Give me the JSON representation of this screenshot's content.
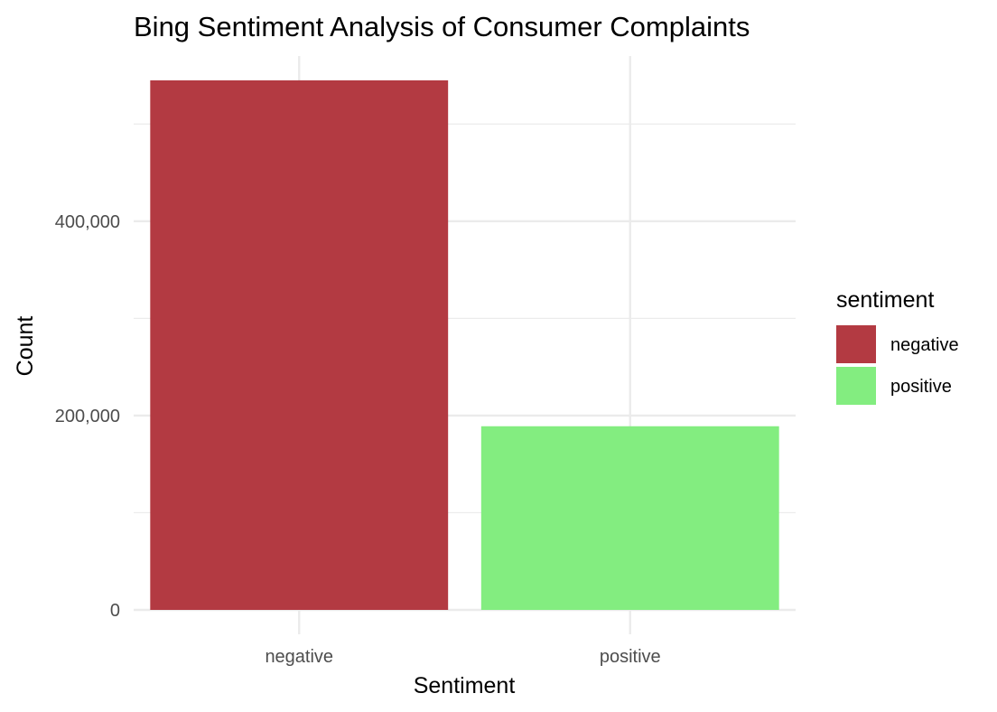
{
  "chart_data": {
    "type": "bar",
    "title": "Bing Sentiment Analysis of Consumer Complaints",
    "xlabel": "Sentiment",
    "ylabel": "Count",
    "categories": [
      "negative",
      "positive"
    ],
    "values": [
      545000,
      189000
    ],
    "colors": [
      "#B33A42",
      "#83ED80"
    ],
    "ylim": [
      0,
      570000
    ],
    "y_ticks": [
      0,
      200000,
      400000
    ],
    "y_tick_labels": [
      "0",
      "200,000",
      "400,000"
    ],
    "y_minor_ticks": [
      100000,
      300000,
      500000
    ],
    "grid": true,
    "legend": {
      "title": "sentiment",
      "position": "right",
      "entries": [
        "negative",
        "positive"
      ]
    }
  }
}
